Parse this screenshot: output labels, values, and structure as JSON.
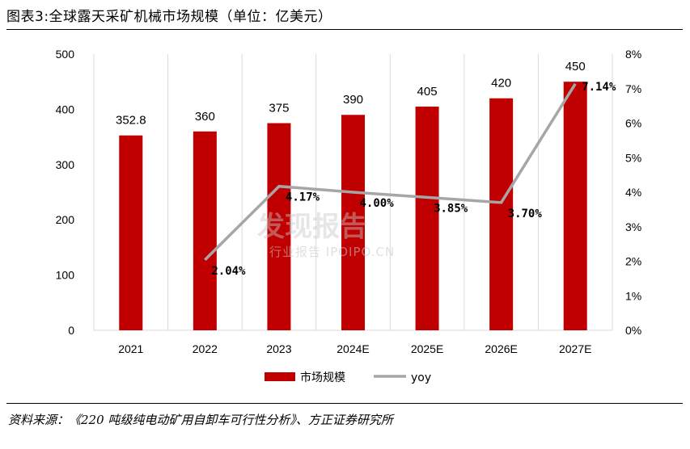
{
  "title": "图表3:全球露天采矿机械市场规模（单位：亿美元）",
  "source": "资料来源：《220 吨级纯电动矿用自卸车可行性分析》、方正证券研究所",
  "watermark": {
    "main": "发现报告",
    "sub": "行业报告 IPOIPO.CN"
  },
  "colors": {
    "bar": "#c00000",
    "line": "#a6a6a6",
    "grid": "#d9d9d9"
  },
  "chart_data": {
    "type": "bar",
    "categories": [
      "2021",
      "2022",
      "2023",
      "2024E",
      "2025E",
      "2026E",
      "2027E"
    ],
    "series": [
      {
        "name": "市场规模",
        "type": "bar",
        "axis": "left",
        "values": [
          352.8,
          360,
          375,
          390,
          405,
          420,
          450
        ],
        "labels": [
          "352.8",
          "360",
          "375",
          "390",
          "405",
          "420",
          "450"
        ]
      },
      {
        "name": "yoy",
        "type": "line",
        "axis": "right",
        "values": [
          null,
          2.04,
          4.17,
          4.0,
          3.85,
          3.7,
          7.14
        ],
        "labels": [
          "",
          "2.04%",
          "4.17%",
          "4.00%",
          "3.85%",
          "3.70%",
          "7.14%"
        ]
      }
    ],
    "ylim": [
      0,
      500
    ],
    "yticks": [
      "0",
      "100",
      "200",
      "300",
      "400",
      "500"
    ],
    "y2lim": [
      0,
      8
    ],
    "y2ticks": [
      "0%",
      "1%",
      "2%",
      "3%",
      "4%",
      "5%",
      "6%",
      "7%",
      "8%"
    ],
    "grid": true,
    "legend": "bottom"
  }
}
